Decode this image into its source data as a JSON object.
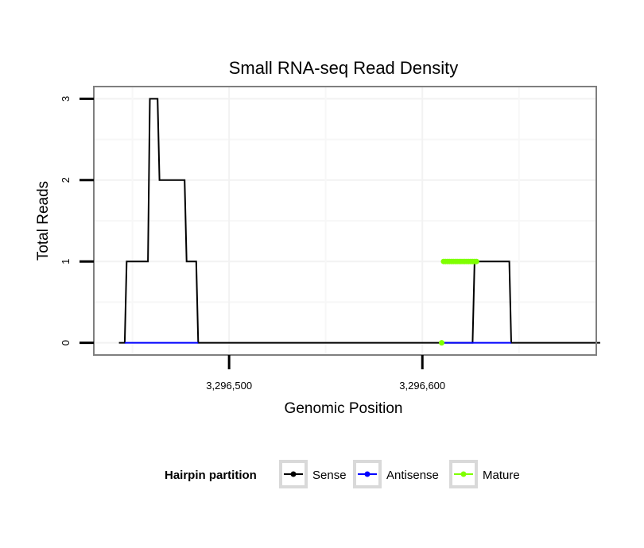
{
  "chart_data": {
    "type": "line",
    "title": "Small RNA-seq Read Density",
    "xlabel": "Genomic Position",
    "ylabel": "Total Reads",
    "xlim": [
      3296430,
      3296690
    ],
    "ylim": [
      -0.15,
      3.15
    ],
    "xticks": [
      3296500,
      3296600
    ],
    "xtick_labels": [
      "3,296,500",
      "3,296,600"
    ],
    "yticks": [
      0,
      1,
      2,
      3
    ],
    "ytick_labels": [
      "0",
      "1",
      "2",
      "3"
    ],
    "grid": true,
    "legend_position": "bottom",
    "legend_title": "Hairpin partition",
    "series": [
      {
        "name": "Sense",
        "color": "#000000",
        "style": "line",
        "x": [
          3296443,
          3296446,
          3296447,
          3296458,
          3296459,
          3296463,
          3296464,
          3296467,
          3296468,
          3296477,
          3296478,
          3296483,
          3296484,
          3296626,
          3296627,
          3296645,
          3296646,
          3296692
        ],
        "y": [
          0,
          0,
          1,
          1,
          3,
          3,
          2,
          2,
          2,
          2,
          1,
          1,
          0,
          0,
          1,
          1,
          0,
          0
        ]
      },
      {
        "name": "Antisense",
        "color": "#0000ff",
        "style": "line",
        "x": [
          3296446,
          3296484,
          3296610,
          3296646
        ],
        "y": [
          0,
          0,
          0,
          0
        ],
        "segments": [
          [
            0,
            1
          ],
          [
            2,
            3
          ]
        ]
      },
      {
        "name": "Mature",
        "color": "#7fff00",
        "style": "markers",
        "x": [
          3296610,
          3296611,
          3296612,
          3296613,
          3296614,
          3296615,
          3296616,
          3296617,
          3296618,
          3296619,
          3296620,
          3296621,
          3296622,
          3296623,
          3296624,
          3296625,
          3296626,
          3296627,
          3296628
        ],
        "y": [
          0,
          1,
          1,
          1,
          1,
          1,
          1,
          1,
          1,
          1,
          1,
          1,
          1,
          1,
          1,
          1,
          1,
          1,
          1
        ]
      }
    ],
    "legend": [
      {
        "label": "Sense",
        "color": "#000000"
      },
      {
        "label": "Antisense",
        "color": "#0000ff"
      },
      {
        "label": "Mature",
        "color": "#7fff00"
      }
    ]
  }
}
